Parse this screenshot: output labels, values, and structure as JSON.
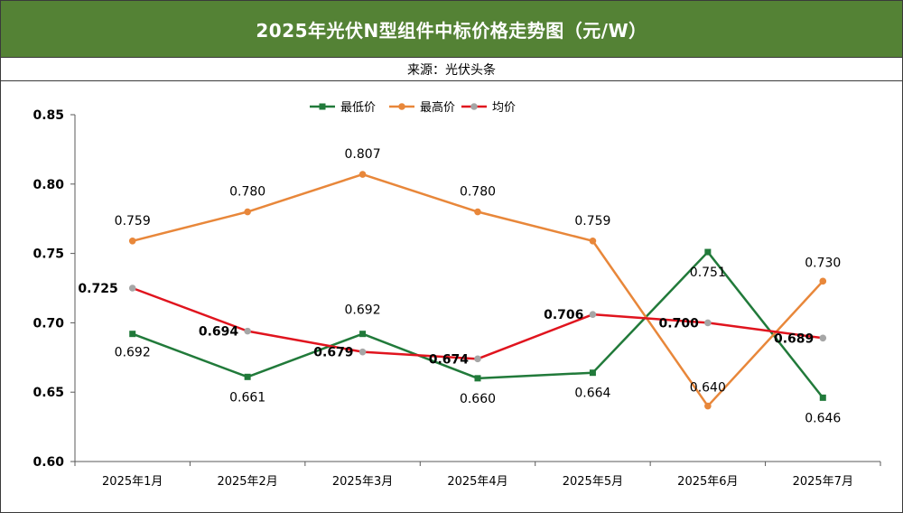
{
  "header": {
    "title": "2025年光伏N型组件中标价格走势图（元/W）",
    "source": "来源：光伏头条"
  },
  "colors": {
    "title_bg": "#548235",
    "min_series": "#217a3a",
    "max_series": "#e8873a",
    "avg_series": "#e0141e",
    "avg_marker": "#a6a6a6"
  },
  "chart_data": {
    "type": "line",
    "categories": [
      "2025年1月",
      "2025年2月",
      "2025年3月",
      "2025年4月",
      "2025年5月",
      "2025年6月",
      "2025年7月"
    ],
    "series": [
      {
        "name": "最低价",
        "values": [
          0.692,
          0.661,
          0.692,
          0.66,
          0.664,
          0.751,
          0.646
        ],
        "labels": [
          "0.692",
          "0.661",
          "0.692",
          "0.660",
          "0.664",
          "0.751",
          "0.646"
        ],
        "marker": "square"
      },
      {
        "name": "最高价",
        "values": [
          0.759,
          0.78,
          0.807,
          0.78,
          0.759,
          0.64,
          0.73
        ],
        "labels": [
          "0.759",
          "0.780",
          "0.807",
          "0.780",
          "0.759",
          "0.640",
          "0.730"
        ],
        "marker": "circle"
      },
      {
        "name": "均价",
        "values": [
          0.725,
          0.694,
          0.679,
          0.674,
          0.706,
          0.7,
          0.689
        ],
        "labels": [
          "0.725",
          "0.694",
          "0.679",
          "0.674",
          "0.706",
          "0.700",
          "0.689"
        ],
        "marker": "circle"
      }
    ],
    "ylim": [
      0.6,
      0.85
    ],
    "yticks": [
      "0.60",
      "0.65",
      "0.70",
      "0.75",
      "0.80",
      "0.85"
    ],
    "grid": false,
    "legend": "top-center"
  }
}
